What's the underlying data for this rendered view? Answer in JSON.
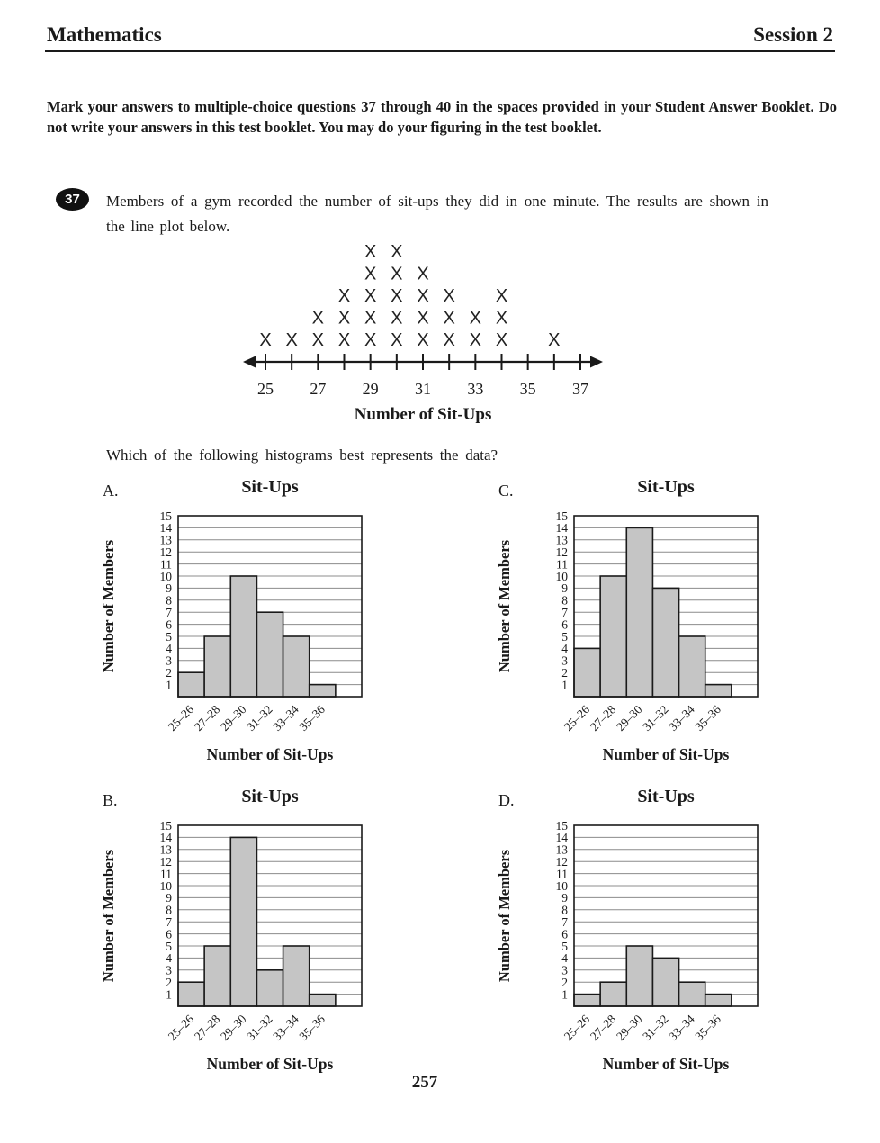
{
  "header": {
    "left": "Mathematics",
    "right": "Session 2"
  },
  "instructions": "Mark your answers to multiple-choice questions 37 through 40 in the spaces provided in your Student Answer Booklet. Do not write your answers in this test booklet. You may do your figuring in the test booklet.",
  "question": {
    "number": "37",
    "text": "Members of a gym recorded the number of sit-ups they did in one minute. The results are shown in the line plot below.",
    "prompt": "Which of the following histograms best represents the data?"
  },
  "page_number": "257",
  "colors": {
    "ink": "#1a1a1a",
    "grid": "#8c8c8c",
    "bar_fill": "#c5c5c5"
  },
  "chart_data": [
    {
      "id": "line-plot",
      "type": "scatter",
      "subtype": "line-plot-frequency",
      "marker": "X",
      "x": [
        25,
        26,
        27,
        28,
        29,
        30,
        31,
        32,
        33,
        34,
        35,
        36,
        37
      ],
      "counts": [
        1,
        1,
        2,
        3,
        5,
        5,
        4,
        3,
        2,
        3,
        0,
        1,
        0
      ],
      "axis_tick_labels": [
        "25",
        "27",
        "29",
        "31",
        "33",
        "35",
        "37"
      ],
      "xlim": [
        25,
        37
      ],
      "xlabel": "Number of Sit-Ups"
    },
    {
      "id": "A",
      "option": "A.",
      "type": "bar",
      "title": "Sit-Ups",
      "categories": [
        "25–26",
        "27–28",
        "29–30",
        "31–32",
        "33–34",
        "35–36"
      ],
      "values": [
        2,
        5,
        10,
        7,
        5,
        1
      ],
      "xlabel": "Number of Sit-Ups",
      "ylabel": "Number of Members",
      "ylim": [
        0,
        15
      ],
      "yticks": [
        1,
        2,
        3,
        4,
        5,
        6,
        7,
        8,
        9,
        10,
        11,
        12,
        13,
        14,
        15
      ],
      "bar_color": "#c5c5c5",
      "grid": true
    },
    {
      "id": "C",
      "option": "C.",
      "type": "bar",
      "title": "Sit-Ups",
      "categories": [
        "25–26",
        "27–28",
        "29–30",
        "31–32",
        "33–34",
        "35–36"
      ],
      "values": [
        4,
        10,
        14,
        9,
        5,
        1
      ],
      "xlabel": "Number of Sit-Ups",
      "ylabel": "Number of Members",
      "ylim": [
        0,
        15
      ],
      "yticks": [
        1,
        2,
        3,
        4,
        5,
        6,
        7,
        8,
        9,
        10,
        11,
        12,
        13,
        14,
        15
      ],
      "bar_color": "#c5c5c5",
      "grid": true
    },
    {
      "id": "B",
      "option": "B.",
      "type": "bar",
      "title": "Sit-Ups",
      "categories": [
        "25–26",
        "27–28",
        "29–30",
        "31–32",
        "33–34",
        "35–36"
      ],
      "values": [
        2,
        5,
        14,
        3,
        5,
        1
      ],
      "xlabel": "Number of Sit-Ups",
      "ylabel": "Number of Members",
      "ylim": [
        0,
        15
      ],
      "yticks": [
        1,
        2,
        3,
        4,
        5,
        6,
        7,
        8,
        9,
        10,
        11,
        12,
        13,
        14,
        15
      ],
      "bar_color": "#c5c5c5",
      "grid": true
    },
    {
      "id": "D",
      "option": "D.",
      "type": "bar",
      "title": "Sit-Ups",
      "categories": [
        "25–26",
        "27–28",
        "29–30",
        "31–32",
        "33–34",
        "35–36"
      ],
      "values": [
        1,
        2,
        5,
        4,
        2,
        1
      ],
      "xlabel": "Number of Sit-Ups",
      "ylabel": "Number of Members",
      "ylim": [
        0,
        15
      ],
      "yticks": [
        1,
        2,
        3,
        4,
        5,
        6,
        7,
        8,
        9,
        10,
        11,
        12,
        13,
        14,
        15
      ],
      "bar_color": "#c5c5c5",
      "grid": true
    }
  ]
}
